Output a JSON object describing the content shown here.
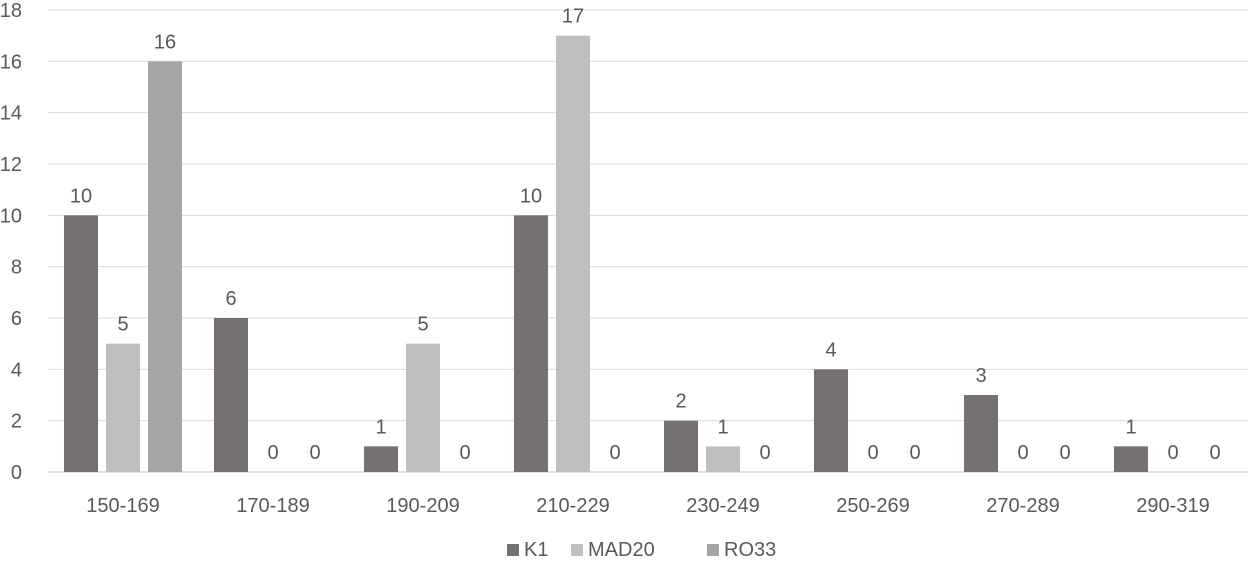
{
  "chart_data": {
    "type": "bar",
    "title": "",
    "xlabel": "",
    "ylabel": "",
    "ylim": [
      0,
      18
    ],
    "yticks": [
      0,
      2,
      4,
      6,
      8,
      10,
      12,
      14,
      16,
      18
    ],
    "grid": "horizontal",
    "legend_position": "bottom",
    "categories": [
      "150-169",
      "170-189",
      "190-209",
      "210-229",
      "230-249",
      "250-269",
      "270-289",
      "290-319"
    ],
    "series": [
      {
        "name": "K1",
        "color": "#767171",
        "values": [
          10,
          6,
          1,
          10,
          2,
          4,
          3,
          1
        ]
      },
      {
        "name": "MAD20",
        "color": "#bfbfbf",
        "values": [
          5,
          0,
          5,
          17,
          1,
          0,
          0,
          0
        ]
      },
      {
        "name": "RO33",
        "color": "#a5a5a5",
        "values": [
          16,
          0,
          0,
          0,
          0,
          0,
          0,
          0
        ]
      }
    ]
  }
}
